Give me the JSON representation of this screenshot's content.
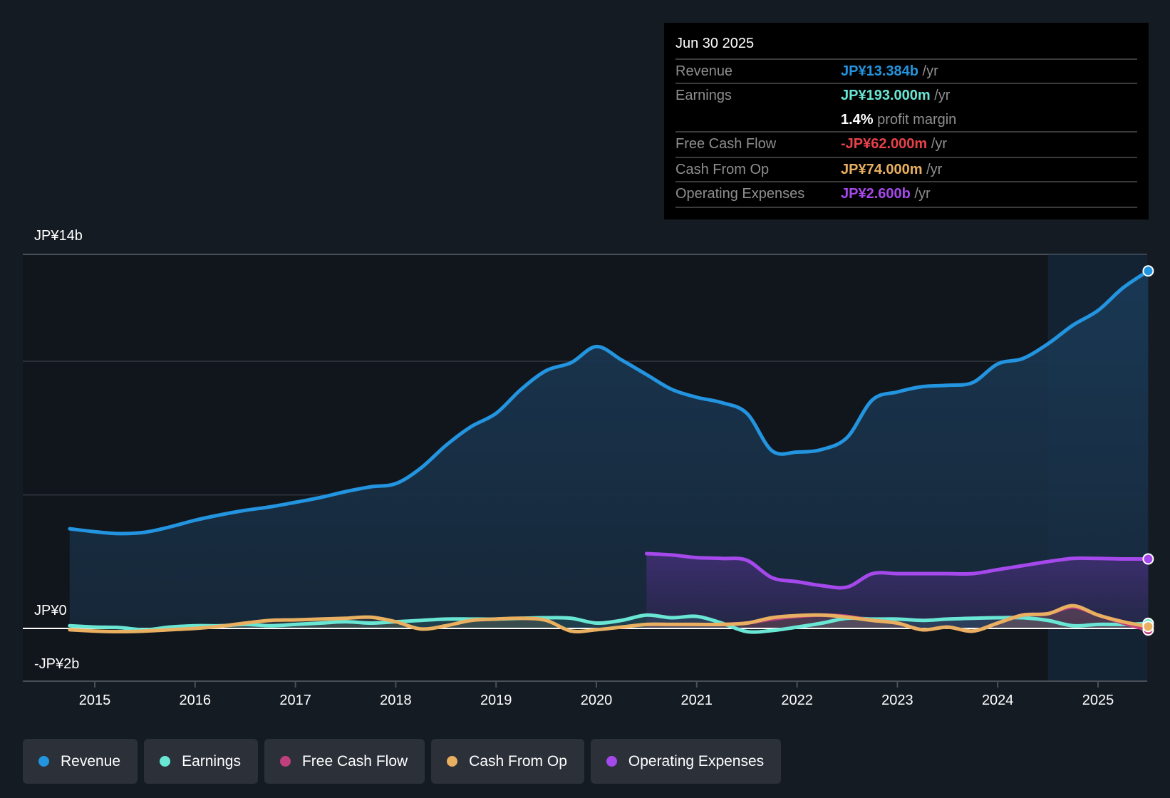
{
  "tooltip": {
    "date": "Jun 30 2025",
    "rows": [
      {
        "label": "Revenue",
        "value": "JP¥13.384b",
        "unit": " /yr",
        "color": "#2394df"
      },
      {
        "label": "Earnings",
        "value": "JP¥193.000m",
        "unit": " /yr",
        "color": "#6ae6d4"
      },
      {
        "label": "",
        "value": "1.4%",
        "unit": " profit margin",
        "color": "#ffffff"
      },
      {
        "label": "Free Cash Flow",
        "value": "-JP¥62.000m",
        "unit": " /yr",
        "color": "#e8414a"
      },
      {
        "label": "Cash From Op",
        "value": "JP¥74.000m",
        "unit": " /yr",
        "color": "#e8b060"
      },
      {
        "label": "Operating Expenses",
        "value": "JP¥2.600b",
        "unit": " /yr",
        "color": "#a649ec"
      }
    ]
  },
  "legend": [
    {
      "label": "Revenue",
      "color": "#2394df"
    },
    {
      "label": "Earnings",
      "color": "#6ae6d4"
    },
    {
      "label": "Free Cash Flow",
      "color": "#c0407e"
    },
    {
      "label": "Cash From Op",
      "color": "#e8b060"
    },
    {
      "label": "Operating Expenses",
      "color": "#a649ec"
    }
  ],
  "chart_data": {
    "type": "area",
    "title": "",
    "xlabel": "",
    "ylabel": "",
    "currency": "JPY",
    "unit": "billions",
    "ylim": [
      -2,
      14
    ],
    "xlim": [
      2014.72,
      2025.5
    ],
    "y_tick_labels": [
      {
        "value": 14,
        "label": "JP¥14b"
      },
      {
        "value": 0,
        "label": "JP¥0"
      },
      {
        "value": -2,
        "label": "-JP¥2b"
      }
    ],
    "gridlines": [
      14,
      10,
      5
    ],
    "x_ticks": [
      "2015",
      "2016",
      "2017",
      "2018",
      "2019",
      "2020",
      "2021",
      "2022",
      "2023",
      "2024",
      "2025"
    ],
    "x_tick_values": [
      2015,
      2016,
      2017,
      2018,
      2019,
      2020,
      2021,
      2022,
      2023,
      2024,
      2025
    ],
    "highlight_from": 2024.5,
    "series": [
      {
        "name": "Revenue",
        "color": "#2394df",
        "fill": true,
        "x": [
          2014.75,
          2015.0,
          2015.25,
          2015.5,
          2015.75,
          2016.0,
          2016.25,
          2016.5,
          2016.75,
          2017.0,
          2017.25,
          2017.5,
          2017.75,
          2018.0,
          2018.25,
          2018.5,
          2018.75,
          2019.0,
          2019.25,
          2019.5,
          2019.75,
          2020.0,
          2020.25,
          2020.5,
          2020.75,
          2021.0,
          2021.25,
          2021.5,
          2021.75,
          2022.0,
          2022.25,
          2022.5,
          2022.75,
          2023.0,
          2023.25,
          2023.5,
          2023.75,
          2024.0,
          2024.25,
          2024.5,
          2024.75,
          2025.0,
          2025.25,
          2025.5
        ],
        "y": [
          3.73,
          3.62,
          3.55,
          3.6,
          3.8,
          4.05,
          4.25,
          4.42,
          4.55,
          4.72,
          4.9,
          5.12,
          5.3,
          5.42,
          6.0,
          6.85,
          7.55,
          8.05,
          8.95,
          9.65,
          9.95,
          10.55,
          10.05,
          9.5,
          8.95,
          8.65,
          8.45,
          8.05,
          6.65,
          6.6,
          6.7,
          7.15,
          8.55,
          8.85,
          9.05,
          9.1,
          9.2,
          9.9,
          10.1,
          10.65,
          11.35,
          11.9,
          12.75,
          13.38
        ]
      },
      {
        "name": "Operating Expenses",
        "color": "#a649ec",
        "fill": true,
        "x": [
          2020.5,
          2020.75,
          2021.0,
          2021.25,
          2021.5,
          2021.75,
          2022.0,
          2022.25,
          2022.5,
          2022.75,
          2023.0,
          2023.25,
          2023.5,
          2023.75,
          2024.0,
          2024.25,
          2024.5,
          2024.75,
          2025.0,
          2025.25,
          2025.5
        ],
        "y": [
          2.8,
          2.75,
          2.65,
          2.62,
          2.55,
          1.9,
          1.75,
          1.6,
          1.55,
          2.05,
          2.05,
          2.05,
          2.05,
          2.05,
          2.2,
          2.35,
          2.5,
          2.62,
          2.62,
          2.6,
          2.6
        ]
      },
      {
        "name": "Earnings",
        "color": "#6ae6d4",
        "fill": false,
        "x": [
          2014.75,
          2015.0,
          2015.25,
          2015.5,
          2015.75,
          2016.0,
          2016.25,
          2016.5,
          2016.75,
          2017.0,
          2017.25,
          2017.5,
          2017.75,
          2018.0,
          2018.25,
          2018.5,
          2018.75,
          2019.0,
          2019.25,
          2019.5,
          2019.75,
          2020.0,
          2020.25,
          2020.5,
          2020.75,
          2021.0,
          2021.25,
          2021.5,
          2021.75,
          2022.0,
          2022.25,
          2022.5,
          2022.75,
          2023.0,
          2023.25,
          2023.5,
          2023.75,
          2024.0,
          2024.25,
          2024.5,
          2024.75,
          2025.0,
          2025.25,
          2025.5
        ],
        "y": [
          0.1,
          0.05,
          0.03,
          -0.05,
          0.05,
          0.1,
          0.1,
          0.15,
          0.1,
          0.15,
          0.2,
          0.25,
          0.2,
          0.25,
          0.3,
          0.35,
          0.35,
          0.35,
          0.38,
          0.4,
          0.38,
          0.2,
          0.3,
          0.5,
          0.4,
          0.45,
          0.2,
          -0.12,
          -0.08,
          0.05,
          0.2,
          0.38,
          0.35,
          0.35,
          0.3,
          0.35,
          0.38,
          0.4,
          0.4,
          0.3,
          0.1,
          0.15,
          0.15,
          0.19
        ]
      },
      {
        "name": "Free Cash Flow",
        "color": "#c0407e",
        "fill": false,
        "x": [
          2020.5,
          2020.75,
          2021.0,
          2021.25,
          2021.5,
          2021.75,
          2022.0,
          2022.25,
          2022.5,
          2022.75,
          2023.0,
          2023.25,
          2023.5,
          2023.75,
          2024.0,
          2024.25,
          2024.5,
          2024.75,
          2025.0,
          2025.25,
          2025.5
        ],
        "y": [
          0.15,
          0.15,
          0.15,
          0.15,
          0.2,
          0.35,
          0.45,
          0.5,
          0.45,
          0.3,
          0.2,
          -0.05,
          0.05,
          -0.1,
          0.2,
          0.5,
          0.55,
          0.8,
          0.5,
          0.2,
          -0.06
        ]
      },
      {
        "name": "Cash From Op",
        "color": "#e8b060",
        "fill": false,
        "x": [
          2014.75,
          2015.0,
          2015.25,
          2015.5,
          2015.75,
          2016.0,
          2016.25,
          2016.5,
          2016.75,
          2017.0,
          2017.25,
          2017.5,
          2017.75,
          2018.0,
          2018.25,
          2018.5,
          2018.75,
          2019.0,
          2019.25,
          2019.5,
          2019.75,
          2020.0,
          2020.25,
          2020.5,
          2020.75,
          2021.0,
          2021.25,
          2021.5,
          2021.75,
          2022.0,
          2022.25,
          2022.5,
          2022.75,
          2023.0,
          2023.25,
          2023.5,
          2023.75,
          2024.0,
          2024.25,
          2024.5,
          2024.75,
          2025.0,
          2025.25,
          2025.5
        ],
        "y": [
          -0.05,
          -0.1,
          -0.12,
          -0.1,
          -0.05,
          0.0,
          0.08,
          0.2,
          0.3,
          0.32,
          0.35,
          0.38,
          0.42,
          0.25,
          -0.02,
          0.1,
          0.3,
          0.35,
          0.38,
          0.3,
          -0.1,
          -0.05,
          0.05,
          0.15,
          0.15,
          0.15,
          0.15,
          0.2,
          0.4,
          0.48,
          0.5,
          0.42,
          0.3,
          0.2,
          -0.05,
          0.05,
          -0.1,
          0.2,
          0.5,
          0.55,
          0.85,
          0.5,
          0.25,
          0.07
        ]
      }
    ]
  }
}
